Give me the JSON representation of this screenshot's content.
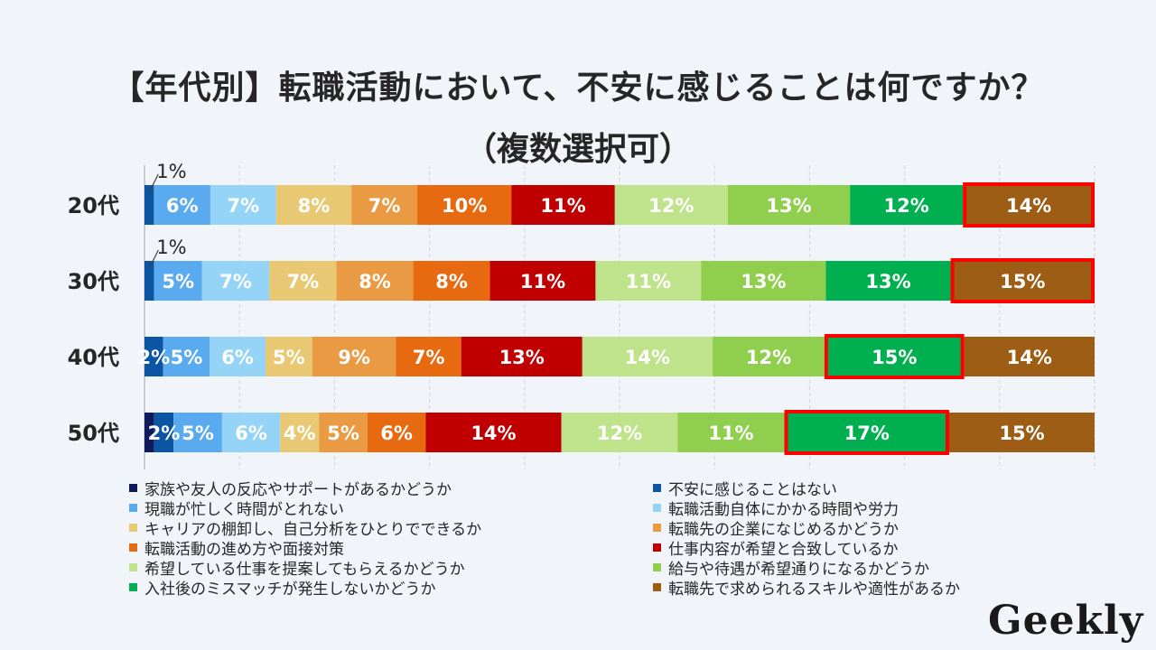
{
  "title": "【年代別】転職活動において、不安に感じることは何ですか？",
  "subtitle": "（複数選択可）",
  "logo_text": "Geekly",
  "chart_data": {
    "type": "bar",
    "orientation": "horizontal",
    "stacked": true,
    "percent_stacked": true,
    "categories": [
      "20代",
      "30代",
      "40代",
      "50代"
    ],
    "series": [
      {
        "name": "家族や友人の反応やサポートがあるかどうか",
        "color": "#0e1b5c",
        "values": [
          0,
          0,
          0,
          1
        ],
        "labels": [
          "",
          "",
          "",
          ""
        ]
      },
      {
        "name": "不安に感じることはない",
        "color": "#0b55a3",
        "values": [
          1,
          1,
          2,
          2
        ],
        "labels": [
          "1%",
          "1%",
          "2%",
          "2%"
        ]
      },
      {
        "name": "現職が忙しく時間がとれない",
        "color": "#5aaaf0",
        "values": [
          6,
          5,
          5,
          5
        ],
        "labels": [
          "6%",
          "5%",
          "5%",
          "5%"
        ]
      },
      {
        "name": "転職活動自体にかかる時間や労力",
        "color": "#96d4f7",
        "values": [
          7,
          7,
          6,
          6
        ],
        "labels": [
          "7%",
          "7%",
          "6%",
          "6%"
        ]
      },
      {
        "name": "キャリアの棚卸し、自己分析をひとりでできるか",
        "color": "#e8c872",
        "values": [
          8,
          7,
          5,
          4
        ],
        "labels": [
          "8%",
          "7%",
          "5%",
          "4%"
        ]
      },
      {
        "name": "転職先の企業になじめるかどうか",
        "color": "#ea9a42",
        "values": [
          7,
          8,
          9,
          5
        ],
        "labels": [
          "7%",
          "8%",
          "9%",
          "5%"
        ]
      },
      {
        "name": "転職活動の進め方や面接対策",
        "color": "#e86a10",
        "values": [
          10,
          8,
          7,
          6
        ],
        "labels": [
          "10%",
          "8%",
          "7%",
          "6%"
        ]
      },
      {
        "name": "仕事内容が希望と合致しているか",
        "color": "#c00000",
        "values": [
          11,
          11,
          13,
          14
        ],
        "labels": [
          "11%",
          "11%",
          "13%",
          "14%"
        ]
      },
      {
        "name": "希望している仕事を提案してもらえるかどうか",
        "color": "#bfe38a",
        "values": [
          12,
          11,
          14,
          12
        ],
        "labels": [
          "12%",
          "11%",
          "14%",
          "12%"
        ]
      },
      {
        "name": "給与や待遇が希望通りになるかどうか",
        "color": "#8fcf4d",
        "values": [
          13,
          13,
          12,
          11
        ],
        "labels": [
          "13%",
          "13%",
          "12%",
          "11%"
        ]
      },
      {
        "name": "入社後のミスマッチが発生しないかどうか",
        "color": "#00b050",
        "values": [
          12,
          13,
          15,
          17
        ],
        "labels": [
          "12%",
          "13%",
          "15%",
          "17%"
        ]
      },
      {
        "name": "転職先で求められるスキルや適性があるか",
        "color": "#9e5d14",
        "values": [
          14,
          15,
          14,
          15
        ],
        "labels": [
          "14%",
          "15%",
          "14%",
          "15%"
        ]
      }
    ],
    "highlights": [
      {
        "category": "20代",
        "series": "転職先で求められるスキルや適性があるか",
        "color": "#ff0000"
      },
      {
        "category": "30代",
        "series": "転職先で求められるスキルや適性があるか",
        "color": "#ff0000"
      },
      {
        "category": "40代",
        "series": "入社後のミスマッチが発生しないかどうか",
        "color": "#ff0000"
      },
      {
        "category": "50代",
        "series": "入社後のミスマッチが発生しないかどうか",
        "color": "#ff0000"
      }
    ],
    "xlim": [
      0,
      100
    ],
    "grid": true,
    "legend_position": "bottom"
  }
}
